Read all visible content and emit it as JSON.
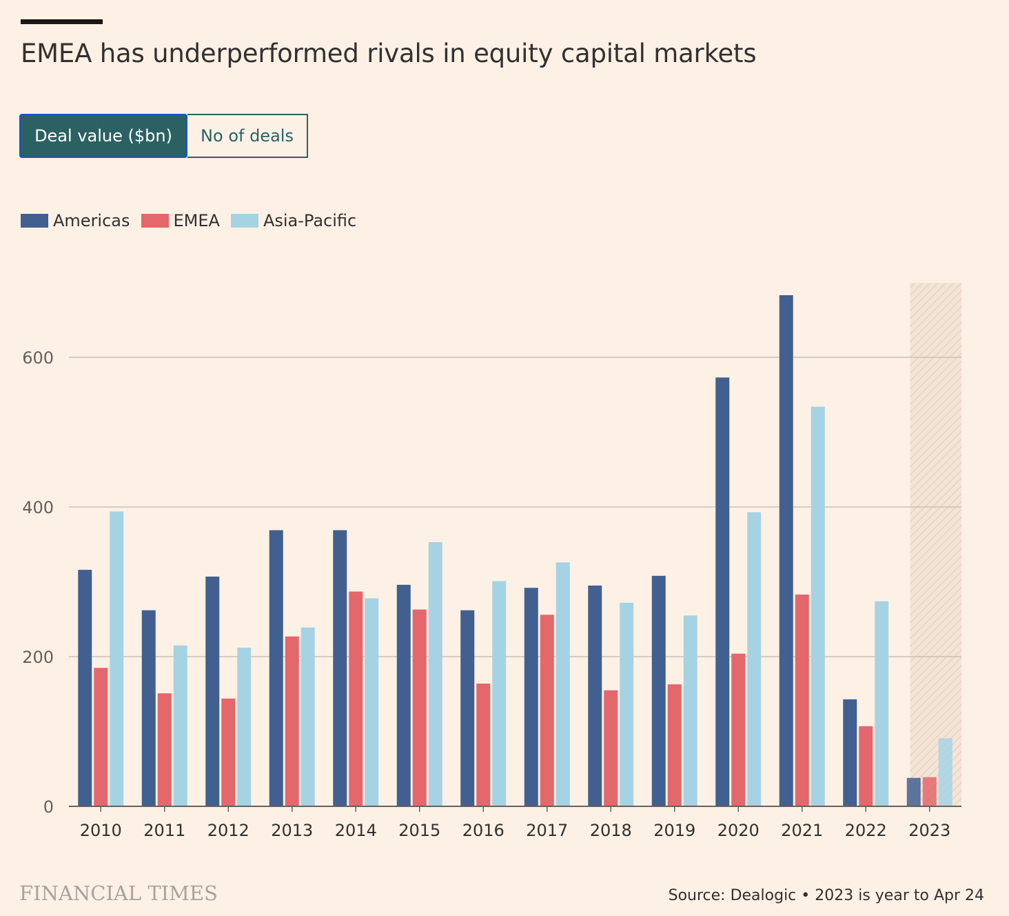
{
  "header": {
    "title": "EMEA has underperformed rivals in equity capital markets"
  },
  "toggle": {
    "options": [
      "Deal value ($bn)",
      "No of deals"
    ],
    "selected": "Deal value ($bn)"
  },
  "legend": [
    {
      "name": "Americas",
      "color": "#41608f"
    },
    {
      "name": "EMEA",
      "color": "#e4676b"
    },
    {
      "name": "Asia-Pacific",
      "color": "#a6d3e4"
    }
  ],
  "chart_data": {
    "type": "bar",
    "categories": [
      "2010",
      "2011",
      "2012",
      "2013",
      "2014",
      "2015",
      "2016",
      "2017",
      "2018",
      "2019",
      "2020",
      "2021",
      "2022",
      "2023"
    ],
    "series": [
      {
        "name": "Americas",
        "color": "#41608f",
        "values": [
          316,
          262,
          307,
          369,
          369,
          296,
          262,
          292,
          295,
          308,
          573,
          683,
          143,
          38
        ]
      },
      {
        "name": "EMEA",
        "color": "#e4676b",
        "values": [
          185,
          151,
          144,
          227,
          287,
          263,
          164,
          256,
          155,
          163,
          204,
          283,
          107,
          39
        ]
      },
      {
        "name": "Asia-Pacific",
        "color": "#a6d3e4",
        "values": [
          394,
          215,
          212,
          239,
          278,
          353,
          301,
          326,
          272,
          255,
          393,
          534,
          274,
          91
        ]
      }
    ],
    "yticks": [
      0,
      200,
      400,
      600
    ],
    "ylim": [
      0,
      700
    ],
    "grid": true,
    "highlighted_category": "2023",
    "legend_position": "top-left"
  },
  "footer": {
    "brand": "FINANCIAL TIMES",
    "source": "Source: Dealogic • 2023 is year to Apr 24"
  }
}
